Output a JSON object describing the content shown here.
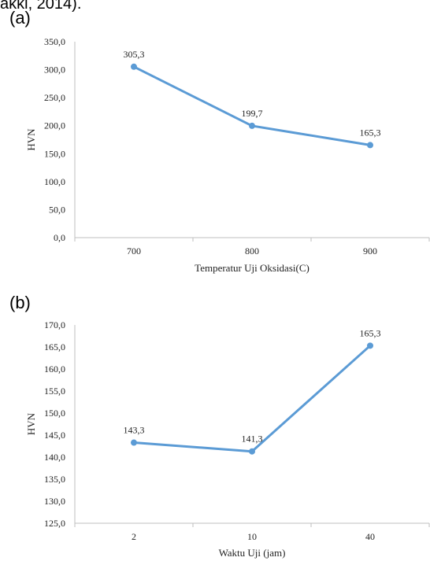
{
  "fragment_text": "akki, 2014).",
  "chart_data": [
    {
      "panel_label": "(a)",
      "type": "line",
      "categories": [
        "700",
        "800",
        "900"
      ],
      "series": [
        {
          "values": [
            305.3,
            199.7,
            165.3
          ]
        }
      ],
      "data_labels": [
        "305,3",
        "199,7",
        "165,3"
      ],
      "xlabel": "Temperatur Uji Oksidasi(C)",
      "ylabel": "HVN",
      "ylim": [
        0,
        350
      ],
      "yticks": [
        "0,0",
        "50,0",
        "100,0",
        "150,0",
        "200,0",
        "250,0",
        "300,0",
        "350,0"
      ],
      "line_color": "#5b9bd5",
      "grid": false
    },
    {
      "panel_label": "(b)",
      "type": "line",
      "categories": [
        "2",
        "10",
        "40"
      ],
      "series": [
        {
          "values": [
            143.3,
            141.3,
            165.3
          ]
        }
      ],
      "data_labels": [
        "143,3",
        "141,3",
        "165,3"
      ],
      "xlabel": "Waktu Uji (jam)",
      "ylabel": "HVN",
      "ylim": [
        125,
        170
      ],
      "yticks": [
        "125,0",
        "130,0",
        "135,0",
        "140,0",
        "145,0",
        "150,0",
        "155,0",
        "160,0",
        "165,0",
        "170,0"
      ],
      "line_color": "#5b9bd5",
      "grid": false
    }
  ]
}
